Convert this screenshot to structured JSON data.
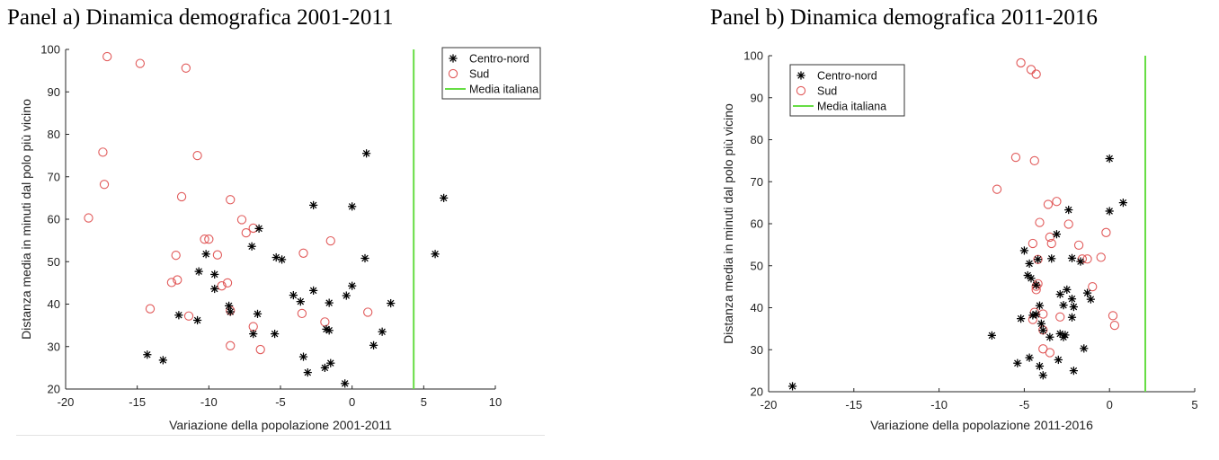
{
  "chart_data": [
    {
      "type": "scatter",
      "panel_title": "Panel a) Dinamica demografica 2001-2011",
      "xlabel": "Variazione della popolazione 2001-2011",
      "ylabel": "Distanza media in minuti dal polo più vicino",
      "xlim": [
        -20,
        10
      ],
      "ylim": [
        20,
        100
      ],
      "xticks": [
        -20,
        -15,
        -10,
        -5,
        0,
        5,
        10
      ],
      "yticks": [
        20,
        30,
        40,
        50,
        60,
        70,
        80,
        90,
        100
      ],
      "legend_position": "top-right",
      "media_italiana_x": 4.3,
      "legend": [
        "Centro-nord",
        "Sud",
        "Media italiana"
      ],
      "colors": {
        "centro": "#000000",
        "sud": "#e15a5a",
        "media": "#66dd44"
      },
      "series": [
        {
          "name": "Centro-nord",
          "marker": "star",
          "points": [
            [
              1.0,
              75.5
            ],
            [
              6.4,
              65
            ],
            [
              -2.7,
              63.3
            ],
            [
              0,
              63
            ],
            [
              -6.5,
              57.8
            ],
            [
              -7.0,
              53.6
            ],
            [
              -10.2,
              51.8
            ],
            [
              -5.3,
              51
            ],
            [
              -4.9,
              50.5
            ],
            [
              0.9,
              50.8
            ],
            [
              5.8,
              51.8
            ],
            [
              -10.7,
              47.7
            ],
            [
              -9.6,
              47
            ],
            [
              -9.6,
              43.6
            ],
            [
              -2.7,
              43.2
            ],
            [
              -4.1,
              42.1
            ],
            [
              -3.6,
              40.6
            ],
            [
              -0.4,
              42
            ],
            [
              0,
              44.3
            ],
            [
              -1.6,
              40.3
            ],
            [
              2.7,
              40.2
            ],
            [
              -8.6,
              39.6
            ],
            [
              -8.5,
              38.2
            ],
            [
              -12.1,
              37.4
            ],
            [
              -6.6,
              37.7
            ],
            [
              -10.8,
              36.2
            ],
            [
              -1.8,
              34.1
            ],
            [
              -1.6,
              33.8
            ],
            [
              2.1,
              33.5
            ],
            [
              -6.9,
              33
            ],
            [
              -5.4,
              33
            ],
            [
              1.5,
              30.3
            ],
            [
              -14.3,
              28.1
            ],
            [
              -13.2,
              26.8
            ],
            [
              -3.4,
              27.6
            ],
            [
              -3.1,
              23.9
            ],
            [
              -1.9,
              25
            ],
            [
              -1.5,
              26.1
            ],
            [
              -0.5,
              21.3
            ]
          ]
        },
        {
          "name": "Sud",
          "marker": "circle",
          "points": [
            [
              -17.1,
              98.3
            ],
            [
              -14.8,
              96.7
            ],
            [
              -11.6,
              95.6
            ],
            [
              -17.4,
              75.8
            ],
            [
              -10.8,
              75
            ],
            [
              -17.3,
              68.2
            ],
            [
              -11.9,
              65.3
            ],
            [
              -8.5,
              64.6
            ],
            [
              -18.4,
              60.3
            ],
            [
              -7.7,
              59.9
            ],
            [
              -6.9,
              57.9
            ],
            [
              -7.4,
              56.8
            ],
            [
              -10.3,
              55.3
            ],
            [
              -10.0,
              55.3
            ],
            [
              -1.5,
              54.9
            ],
            [
              -12.3,
              51.5
            ],
            [
              -9.4,
              51.6
            ],
            [
              -3.4,
              52
            ],
            [
              -12.6,
              45.1
            ],
            [
              -12.2,
              45.7
            ],
            [
              -8.7,
              45
            ],
            [
              -9.1,
              44.3
            ],
            [
              -14.1,
              38.9
            ],
            [
              -8.5,
              38.5
            ],
            [
              -3.5,
              37.8
            ],
            [
              1.1,
              38.1
            ],
            [
              -11.4,
              37.2
            ],
            [
              -1.9,
              35.8
            ],
            [
              -6.9,
              34.7
            ],
            [
              -8.5,
              30.2
            ],
            [
              -6.4,
              29.3
            ]
          ]
        }
      ]
    },
    {
      "type": "scatter",
      "panel_title": "Panel b) Dinamica demografica 2011-2016",
      "xlabel": "Variazione della popolazione 2011-2016",
      "ylabel": "Distanza media in minuti dal polo più vicino",
      "xlim": [
        -20,
        5
      ],
      "ylim": [
        20,
        100
      ],
      "xticks": [
        -20,
        -15,
        -10,
        -5,
        0,
        5
      ],
      "yticks": [
        20,
        30,
        40,
        50,
        60,
        70,
        80,
        90,
        100
      ],
      "legend_position": "top-left",
      "media_italiana_x": 2.1,
      "legend": [
        "Centro-nord",
        "Sud",
        "Media italiana"
      ],
      "colors": {
        "centro": "#000000",
        "sud": "#e15a5a",
        "media": "#66dd44"
      },
      "series": [
        {
          "name": "Centro-nord",
          "marker": "star",
          "points": [
            [
              0,
              75.5
            ],
            [
              0.8,
              65
            ],
            [
              -2.4,
              63.3
            ],
            [
              0,
              63
            ],
            [
              -3.1,
              57.5
            ],
            [
              -5.0,
              53.6
            ],
            [
              -4.7,
              50.5
            ],
            [
              -4.2,
              51.5
            ],
            [
              -3.4,
              51.7
            ],
            [
              -2.2,
              51.8
            ],
            [
              -1.7,
              51
            ],
            [
              -4.8,
              47.7
            ],
            [
              -4.6,
              47
            ],
            [
              -4.3,
              45.4
            ],
            [
              -2.5,
              44.3
            ],
            [
              -2.9,
              43.2
            ],
            [
              -2.2,
              42.1
            ],
            [
              -1.3,
              43.5
            ],
            [
              -1.1,
              42
            ],
            [
              -4.1,
              40.5
            ],
            [
              -2.7,
              40.6
            ],
            [
              -2.1,
              40.2
            ],
            [
              -4.5,
              38.2
            ],
            [
              -4.3,
              38.4
            ],
            [
              -5.2,
              37.4
            ],
            [
              -2.2,
              37.7
            ],
            [
              -4.0,
              36.2
            ],
            [
              -3.9,
              34.6
            ],
            [
              -2.9,
              33.8
            ],
            [
              -2.6,
              33.5
            ],
            [
              -3.5,
              33
            ],
            [
              -6.9,
              33.4
            ],
            [
              -2.7,
              33
            ],
            [
              -1.5,
              30.3
            ],
            [
              -4.7,
              28.1
            ],
            [
              -5.4,
              26.8
            ],
            [
              -3.0,
              27.6
            ],
            [
              -4.1,
              26.1
            ],
            [
              -3.9,
              23.9
            ],
            [
              -2.1,
              25
            ],
            [
              -18.6,
              21.3
            ]
          ]
        },
        {
          "name": "Sud",
          "marker": "circle",
          "points": [
            [
              -5.2,
              98.3
            ],
            [
              -4.6,
              96.7
            ],
            [
              -4.3,
              95.6
            ],
            [
              -5.5,
              75.8
            ],
            [
              -4.4,
              75
            ],
            [
              -6.6,
              68.2
            ],
            [
              -3.1,
              65.3
            ],
            [
              -3.6,
              64.6
            ],
            [
              -4.1,
              60.3
            ],
            [
              -2.4,
              59.9
            ],
            [
              -0.2,
              57.9
            ],
            [
              -3.5,
              56.8
            ],
            [
              -3.4,
              55.3
            ],
            [
              -4.5,
              55.3
            ],
            [
              -1.8,
              54.9
            ],
            [
              -4.2,
              51.5
            ],
            [
              -1.3,
              51.6
            ],
            [
              -0.5,
              52
            ],
            [
              -1.6,
              51.6
            ],
            [
              -4.3,
              45.1
            ],
            [
              -4.2,
              45.7
            ],
            [
              -1.0,
              45
            ],
            [
              -4.3,
              44.3
            ],
            [
              -4.4,
              38.9
            ],
            [
              -3.9,
              38.5
            ],
            [
              -2.9,
              37.8
            ],
            [
              0.2,
              38.1
            ],
            [
              -4.5,
              37.2
            ],
            [
              0.3,
              35.8
            ],
            [
              -3.9,
              34.7
            ],
            [
              -3.9,
              30.2
            ],
            [
              -3.5,
              29.3
            ]
          ]
        }
      ]
    }
  ]
}
